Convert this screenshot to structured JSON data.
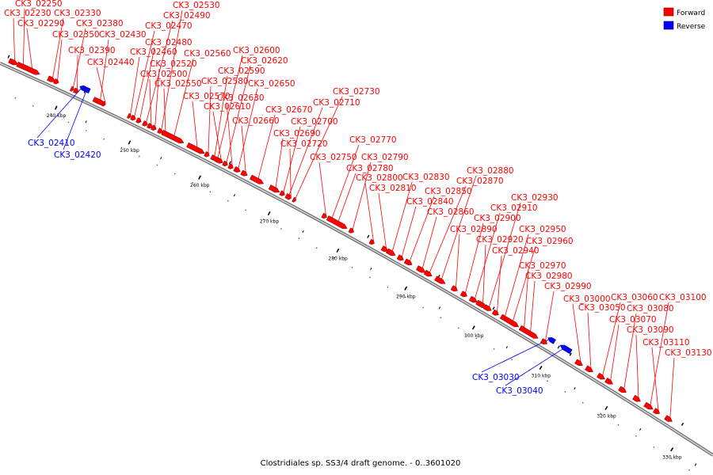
{
  "caption": "Clostridiales sp. SS3/4 draft genome. - 0..3601020",
  "legend": {
    "forward": {
      "label": "Forward",
      "color": "#ff0000"
    },
    "reverse": {
      "label": "Reverse",
      "color": "#0000ff"
    }
  },
  "ticks": [
    "240 kbp",
    "250 kbp",
    "260 kbp",
    "270 kbp",
    "280 kbp",
    "290 kbp",
    "300 kbp",
    "310 kbp",
    "320 kbp",
    "330 kbp"
  ],
  "genes": [
    {
      "id": "CK3_02230",
      "strand": "forward"
    },
    {
      "id": "CK3_02250",
      "strand": "forward"
    },
    {
      "id": "CK3_02290",
      "strand": "forward"
    },
    {
      "id": "CK3_02330",
      "strand": "forward"
    },
    {
      "id": "CK3_02350",
      "strand": "forward"
    },
    {
      "id": "CK3_02380",
      "strand": "forward"
    },
    {
      "id": "CK3_02390",
      "strand": "forward"
    },
    {
      "id": "CK3_02410",
      "strand": "reverse"
    },
    {
      "id": "CK3_02420",
      "strand": "reverse"
    },
    {
      "id": "CK3_02430",
      "strand": "forward"
    },
    {
      "id": "CK3_02440",
      "strand": "forward"
    },
    {
      "id": "CK3_02460",
      "strand": "forward"
    },
    {
      "id": "CK3_02470",
      "strand": "forward"
    },
    {
      "id": "CK3_02480",
      "strand": "forward"
    },
    {
      "id": "CK3_02490",
      "strand": "forward"
    },
    {
      "id": "CK3_02500",
      "strand": "forward"
    },
    {
      "id": "CK3_02520",
      "strand": "forward"
    },
    {
      "id": "CK3_02530",
      "strand": "forward"
    },
    {
      "id": "CK3_02550",
      "strand": "forward"
    },
    {
      "id": "CK3_02560",
      "strand": "forward"
    },
    {
      "id": "CK3_02570",
      "strand": "forward"
    },
    {
      "id": "CK3_02580",
      "strand": "forward"
    },
    {
      "id": "CK3_02590",
      "strand": "forward"
    },
    {
      "id": "CK3_02600",
      "strand": "forward"
    },
    {
      "id": "CK3_02610",
      "strand": "forward"
    },
    {
      "id": "CK3_02620",
      "strand": "forward"
    },
    {
      "id": "CK3_02630",
      "strand": "forward"
    },
    {
      "id": "CK3_02650",
      "strand": "forward"
    },
    {
      "id": "CK3_02660",
      "strand": "forward"
    },
    {
      "id": "CK3_02670",
      "strand": "forward"
    },
    {
      "id": "CK3_02690",
      "strand": "forward"
    },
    {
      "id": "CK3_02700",
      "strand": "forward"
    },
    {
      "id": "CK3_02710",
      "strand": "forward"
    },
    {
      "id": "CK3_02720",
      "strand": "forward"
    },
    {
      "id": "CK3_02730",
      "strand": "forward"
    },
    {
      "id": "CK3_02750",
      "strand": "forward"
    },
    {
      "id": "CK3_02770",
      "strand": "forward"
    },
    {
      "id": "CK3_02780",
      "strand": "forward"
    },
    {
      "id": "CK3_02790",
      "strand": "forward"
    },
    {
      "id": "CK3_02800",
      "strand": "forward"
    },
    {
      "id": "CK3_02810",
      "strand": "forward"
    },
    {
      "id": "CK3_02830",
      "strand": "forward"
    },
    {
      "id": "CK3_02840",
      "strand": "forward"
    },
    {
      "id": "CK3_02850",
      "strand": "forward"
    },
    {
      "id": "CK3_02860",
      "strand": "forward"
    },
    {
      "id": "CK3_02870",
      "strand": "forward"
    },
    {
      "id": "CK3_02880",
      "strand": "forward"
    },
    {
      "id": "CK3_02890",
      "strand": "forward"
    },
    {
      "id": "CK3_02900",
      "strand": "forward"
    },
    {
      "id": "CK3_02910",
      "strand": "forward"
    },
    {
      "id": "CK3_02920",
      "strand": "forward"
    },
    {
      "id": "CK3_02930",
      "strand": "forward"
    },
    {
      "id": "CK3_02940",
      "strand": "forward"
    },
    {
      "id": "CK3_02950",
      "strand": "forward"
    },
    {
      "id": "CK3_02960",
      "strand": "forward"
    },
    {
      "id": "CK3_02970",
      "strand": "forward"
    },
    {
      "id": "CK3_02980",
      "strand": "forward"
    },
    {
      "id": "CK3_02990",
      "strand": "forward"
    },
    {
      "id": "CK3_03000",
      "strand": "forward"
    },
    {
      "id": "CK3_03030",
      "strand": "reverse"
    },
    {
      "id": "CK3_03040",
      "strand": "reverse"
    },
    {
      "id": "CK3_03050",
      "strand": "forward"
    },
    {
      "id": "CK3_03060",
      "strand": "forward"
    },
    {
      "id": "CK3_03070",
      "strand": "forward"
    },
    {
      "id": "CK3_03080",
      "strand": "forward"
    },
    {
      "id": "CK3_03090",
      "strand": "forward"
    },
    {
      "id": "CK3_03100",
      "strand": "forward"
    },
    {
      "id": "CK3_03110",
      "strand": "forward"
    },
    {
      "id": "CK3_03130",
      "strand": "forward"
    }
  ]
}
